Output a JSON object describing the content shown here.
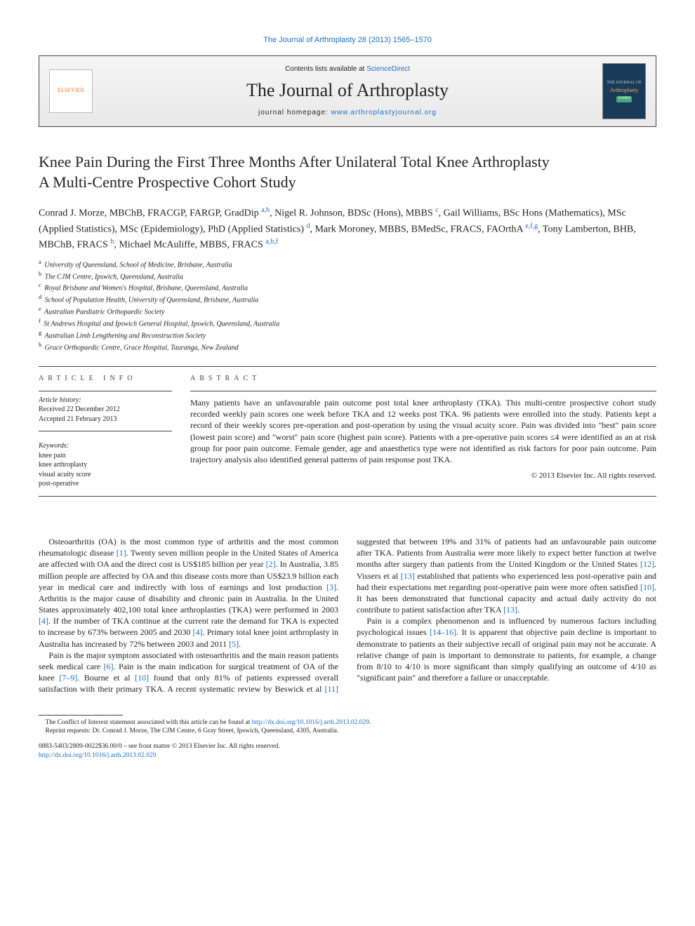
{
  "colors": {
    "link": "#1a6fc9",
    "text": "#222222",
    "rule": "#444444",
    "masthead_bg_top": "#f5f5f5",
    "masthead_bg_bottom": "#e9e9e9",
    "elsevier_orange": "#e67a1a",
    "cover_bg": "#1a3a5a",
    "cover_gold": "#e6b84a"
  },
  "typography": {
    "base_family": "Georgia, 'Times New Roman', serif",
    "sans_family": "Arial, sans-serif",
    "running_head_pt": 11,
    "journal_name_pt": 26,
    "title_pt": 22,
    "authors_pt": 14,
    "affil_pt": 10,
    "body_pt": 12,
    "footnote_pt": 9.5
  },
  "running_head": "The Journal of Arthroplasty 28 (2013) 1565–1570",
  "masthead": {
    "elsevier_label": "ELSEVIER",
    "contents_prefix": "Contents lists available at ",
    "contents_link": "ScienceDirect",
    "journal_name": "The Journal of Arthroplasty",
    "homepage_label": "journal homepage: ",
    "homepage_url_text": "www.arthroplastyjournal.org",
    "cover_top": "THE JOURNAL OF",
    "cover_title": "Arthroplasty",
    "cover_badge": "AAHKS"
  },
  "article": {
    "title": "Knee Pain During the First Three Months After Unilateral Total Knee Arthroplasty",
    "subtitle": "A Multi-Centre Prospective Cohort Study",
    "authors_html": "Conrad J. Morze, MBChB, FRACGP, FARGP, GradDip <sup>a,b</sup>, Nigel R. Johnson, BDSc (Hons), MBBS <sup>c</sup>, Gail Williams, BSc Hons (Mathematics), MSc (Applied Statistics), MSc (Epidemiology), PhD (Applied Statistics) <sup>d</sup>, Mark Moroney, MBBS, BMedSc, FRACS, FAOrthA <sup>e,f,g</sup>, Tony Lamberton, BHB, MBChB, FRACS <sup>h</sup>, Michael McAuliffe, MBBS, FRACS <sup>a,b,f</sup>",
    "affiliations": [
      {
        "key": "a",
        "text": "University of Queensland, School of Medicine, Brisbane, Australia"
      },
      {
        "key": "b",
        "text": "The CJM Centre, Ipswich, Queensland, Australia"
      },
      {
        "key": "c",
        "text": "Royal Brisbane and Women's Hospital, Brisbane, Queensland, Australia"
      },
      {
        "key": "d",
        "text": "School of Population Health, University of Queensland, Brisbane, Australia"
      },
      {
        "key": "e",
        "text": "Australian Paediatric Orthopaedic Society"
      },
      {
        "key": "f",
        "text": "St Andrews Hospital and Ipswich General Hospital, Ipswich, Queensland, Australia"
      },
      {
        "key": "g",
        "text": "Australian Limb Lengthening and Reconstruction Society"
      },
      {
        "key": "h",
        "text": "Grace Orthopaedic Centre, Grace Hospital, Tauranga, New Zealand"
      }
    ]
  },
  "info": {
    "label": "article info",
    "history_label": "Article history:",
    "received": "Received 22 December 2012",
    "accepted": "Accepted 21 February 2013",
    "keywords_label": "Keywords:",
    "keywords": [
      "knee pain",
      "knee arthroplasty",
      "visual acuity score",
      "post-operative"
    ]
  },
  "abstract": {
    "label": "abstract",
    "text": "Many patients have an unfavourable pain outcome post total knee arthroplasty (TKA). This multi-centre prospective cohort study recorded weekly pain scores one week before TKA and 12 weeks post TKA. 96 patients were enrolled into the study. Patients kept a record of their weekly scores pre-operation and post-operation by using the visual acuity score. Pain was divided into \"best\" pain score (lowest pain score) and \"worst\" pain score (highest pain score). Patients with a pre-operative pain scores ≤4 were identified as an at risk group for poor pain outcome. Female gender, age and anaesthetics type were not identified as risk factors for poor pain outcome. Pain trajectory analysis also identified general patterns of pain response post TKA.",
    "copyright": "© 2013 Elsevier Inc. All rights reserved."
  },
  "body": {
    "p1": "Osteoarthritis (OA) is the most common type of arthritis and the most common rheumatologic disease [1]. Twenty seven million people in the United States of America are affected with OA and the direct cost is US$185 billion per year [2]. In Australia, 3.85 million people are affected by OA and this disease costs more than US$23.9 billion each year in medical care and indirectly with loss of earnings and lost production [3]. Arthritis is the major cause of disability and chronic pain in Australia. In the United States approximately 402,100 total knee arthroplasties (TKA) were performed in 2003 [4]. If the number of TKA continue at the current rate the demand for TKA is expected to increase by 673% between 2005 and 2030 [4]. Primary total knee joint arthroplasty in Australia has increased by 72% between 2003 and 2011 [5].",
    "p2": "Pain is the major symptom associated with osteoarthritis and the main reason patients seek medical care [6]. Pain is the main indication for surgical treatment of OA of the knee [7–9]. Bourne et al [10] found that only 81% of patients expressed overall satisfaction with their primary TKA. A recent systematic review by Beswick et al [11] suggested that between 19% and 31% of patients had an unfavourable pain outcome after TKA. Patients from Australia were more likely to expect better function at twelve months after surgery than patients from the United Kingdom or the United States [12]. Vissers et al [13] established that patients who experienced less post-operative pain and had their expectations met regarding post-operative pain were more often satisfied [10]. It has been demonstrated that functional capacity and actual daily activity do not contribute to patient satisfaction after TKA [13].",
    "p3": "Pain is a complex phenomenon and is influenced by numerous factors including psychological issues [14–16]. It is apparent that objective pain decline is important to demonstrate to patients as their subjective recall of original pain may not be accurate. A relative change of pain is important to demonstrate to patients, for example, a change from 8/10 to 4/10 is more significant than simply qualifying an outcome of 4/10 as \"significant pain\" and therefore a failure or unacceptable.",
    "refs": [
      "[1]",
      "[2]",
      "[3]",
      "[4]",
      "[5]",
      "[6]",
      "[7–9]",
      "[10]",
      "[11]",
      "[12]",
      "[13]",
      "[14–16]"
    ]
  },
  "footnotes": {
    "conflict_prefix": "The Conflict of Interest statement associated with this article can be found at ",
    "conflict_link": "http://dx.doi.org/10.1016/j.arth.2013.02.029",
    "conflict_suffix": ".",
    "reprint": "Reprint requests: Dr. Conrad J. Morze, The CJM Centre, 6 Gray Street, Ipswich, Queensland, 4305, Australia."
  },
  "bottom": {
    "line1": "0883-5403/2809-0022$36.00/0 – see front matter © 2013 Elsevier Inc. All rights reserved.",
    "doi": "http://dx.doi.org/10.1016/j.arth.2013.02.029"
  }
}
